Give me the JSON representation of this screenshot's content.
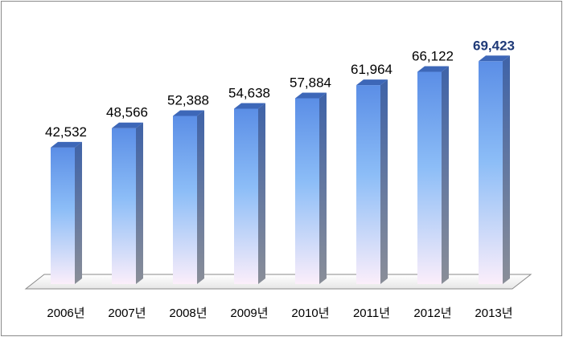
{
  "chart_data": {
    "type": "bar",
    "title": "",
    "xlabel": "",
    "ylabel": "",
    "categories": [
      "2006년",
      "2007년",
      "2008년",
      "2009년",
      "2010년",
      "2011년",
      "2012년",
      "2013년"
    ],
    "values": [
      42532,
      48566,
      52388,
      54638,
      57884,
      61964,
      66122,
      69423
    ],
    "value_labels": [
      "42,532",
      "48,566",
      "52,388",
      "54,638",
      "57,884",
      "61,964",
      "66,122",
      "69,423"
    ],
    "highlighted_label_index": 7,
    "highlight_color": "#1f3a78",
    "bar_top_color": "#5b8ee6",
    "bar_bottom_color": "#fbeefa",
    "bar_side_color": "#4a6fb0",
    "grid": false,
    "legend": "none",
    "ylim": [
      0,
      75000
    ]
  }
}
